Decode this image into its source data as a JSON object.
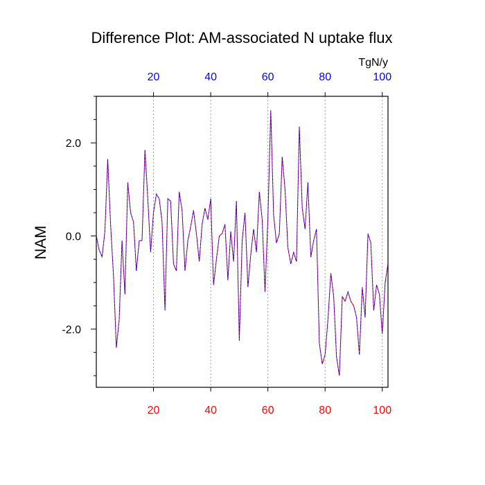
{
  "chart_data": {
    "type": "line",
    "title": "Difference Plot: AM-associated N uptake flux",
    "units_label": "TgN/y",
    "ylabel": "NAM",
    "xlim": [
      0,
      102
    ],
    "ylim": [
      -3.25,
      3.0
    ],
    "x_ticks": [
      20,
      40,
      60,
      80,
      100
    ],
    "x_tick_labels": [
      "20",
      "40",
      "60",
      "80",
      "100"
    ],
    "y_ticks": [
      -2.0,
      0.0,
      2.0
    ],
    "y_tick_labels": [
      "-2.0",
      "0.0",
      "2.0"
    ],
    "y_minor_ticks": [
      -3.0,
      -2.5,
      -1.5,
      -1.0,
      -0.5,
      0.5,
      1.0,
      1.5,
      2.5,
      3.0
    ],
    "colors": {
      "bottom_tick_labels": "#ff0000",
      "top_tick_labels": "#0000ff",
      "series_a": "#ff0000",
      "series_b": "#0000ff",
      "grid": "#999999",
      "axes": "#000000"
    },
    "grid": "vertical-dotted",
    "series": [
      {
        "line_style": "dashed",
        "x": [
          0,
          1,
          2,
          3,
          4,
          5,
          6,
          7,
          8,
          9,
          10,
          11,
          12,
          13,
          14,
          15,
          16,
          17,
          18,
          19,
          20,
          21,
          22,
          23,
          24,
          25,
          26,
          27,
          28,
          29,
          30,
          31,
          32,
          33,
          34,
          35,
          36,
          37,
          38,
          39,
          40,
          41,
          42,
          43,
          44,
          45,
          46,
          47,
          48,
          49,
          50,
          51,
          52,
          53,
          54,
          55,
          56,
          57,
          58,
          59,
          60,
          61,
          62,
          63,
          64,
          65,
          66,
          67,
          68,
          69,
          70,
          71,
          72,
          73,
          74,
          75,
          76,
          77,
          78,
          79,
          80,
          81,
          82,
          83,
          84,
          85,
          86,
          87,
          88,
          89,
          90,
          91,
          92,
          93,
          94,
          95,
          96,
          97,
          98,
          99,
          100,
          101,
          102
        ],
        "y": [
          0.0,
          -0.3,
          -0.45,
          0.1,
          1.65,
          0.25,
          -0.85,
          -2.4,
          -1.8,
          -0.1,
          -1.25,
          1.15,
          0.5,
          0.3,
          -0.75,
          -0.1,
          -0.1,
          1.85,
          0.8,
          -0.35,
          0.5,
          0.9,
          0.8,
          0.3,
          -1.6,
          0.8,
          0.75,
          -0.6,
          -0.75,
          0.95,
          0.55,
          -0.75,
          -0.1,
          0.2,
          0.55,
          0.05,
          -0.55,
          0.25,
          0.6,
          0.35,
          0.8,
          -1.05,
          -0.5,
          0.0,
          0.05,
          0.25,
          -0.95,
          0.1,
          -0.55,
          0.75,
          -2.25,
          -0.1,
          0.5,
          -1.1,
          -0.4,
          0.15,
          -0.35,
          0.95,
          0.35,
          -1.2,
          0.35,
          2.7,
          0.45,
          -0.15,
          0.05,
          1.7,
          1.0,
          -0.25,
          -0.6,
          -0.35,
          -0.55,
          2.35,
          0.6,
          0.15,
          1.15,
          -0.45,
          -0.1,
          0.15,
          -2.3,
          -2.75,
          -2.55,
          -1.8,
          -0.8,
          -1.3,
          -2.6,
          -3.0,
          -1.3,
          -1.4,
          -1.2,
          -1.4,
          -1.5,
          -1.75,
          -2.55,
          -1.1,
          -1.75,
          0.05,
          -0.15,
          -1.6,
          -1.05,
          -1.25,
          -2.1,
          -1.0,
          -0.6
        ]
      }
    ]
  }
}
